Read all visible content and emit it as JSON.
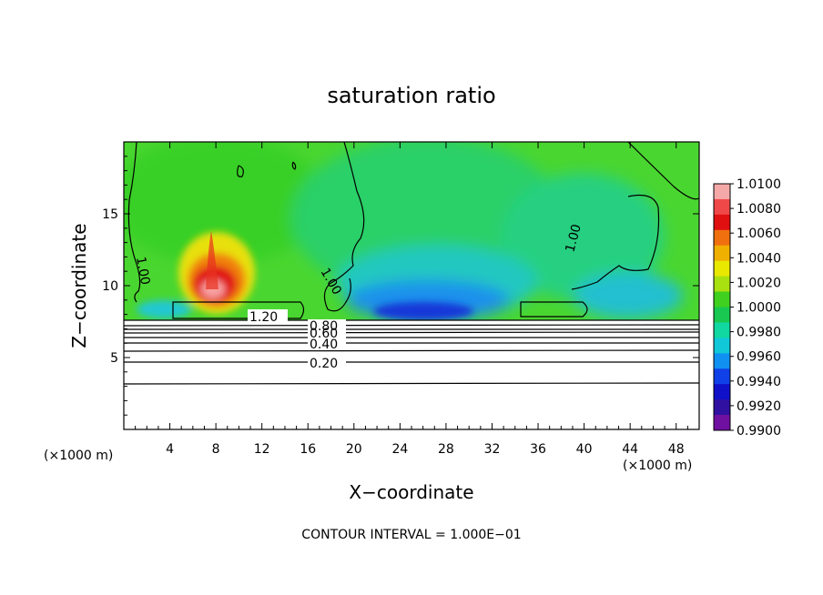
{
  "chart_data": {
    "type": "heatmap",
    "title": "saturation ratio",
    "xlabel": "X−coordinate",
    "ylabel": "Z−coordinate",
    "x_unit_left": "(×1000 m)",
    "x_unit_right": "(×1000 m)",
    "footer": "CONTOUR INTERVAL = 1.000E−01",
    "xlim": [
      0,
      50
    ],
    "ylim": [
      0,
      20
    ],
    "x_ticks": [
      4,
      8,
      12,
      16,
      20,
      24,
      28,
      32,
      36,
      40,
      44,
      48
    ],
    "y_ticks": [
      5,
      10,
      15
    ],
    "colorbar": {
      "labels": [
        "1.0100",
        "1.0080",
        "1.0060",
        "1.0040",
        "1.0020",
        "1.0000",
        "0.9980",
        "0.9960",
        "0.9940",
        "0.9920",
        "0.9900"
      ],
      "colors": [
        "#f5a8a8",
        "#f04848",
        "#e01010",
        "#f07010",
        "#f0b000",
        "#e8e800",
        "#a8e010",
        "#40d020",
        "#18c850",
        "#10d8a0",
        "#10c8d8",
        "#1090f0",
        "#1040e8",
        "#1010c8",
        "#3010a0",
        "#7010a0"
      ]
    },
    "contours": [
      {
        "label": "1.20",
        "z": 8.0
      },
      {
        "label": "0.80",
        "z": 7.2
      },
      {
        "label": "0.60",
        "z": 6.9
      },
      {
        "label": "0.40",
        "z": 6.0
      },
      {
        "label": "0.20",
        "z": 4.8
      }
    ],
    "contour_labels_upper": [
      {
        "label": "1.00",
        "x": 1.8,
        "z": 11.2
      },
      {
        "label": "1.00",
        "x": 17.8,
        "z": 12.0
      },
      {
        "label": "1.00",
        "x": 39.0,
        "z": 13.8
      }
    ],
    "features": {
      "supersat_peak": {
        "x": 7.8,
        "z": 10.5,
        "value": 1.01
      },
      "subsat_min": {
        "x": 27.0,
        "z": 8.3,
        "value": 0.992
      }
    }
  }
}
